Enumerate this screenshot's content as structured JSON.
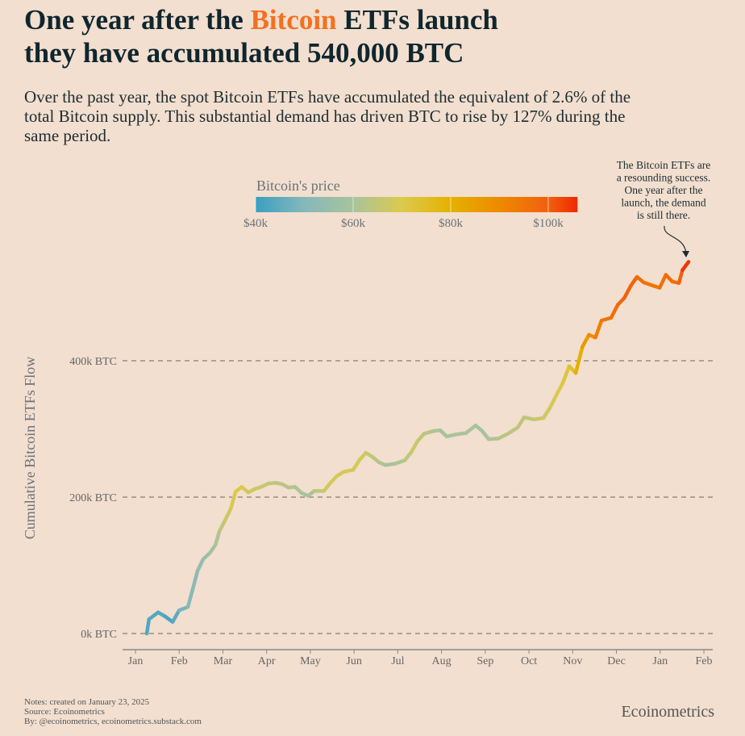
{
  "title": {
    "line1_pre": "One year after the ",
    "line1_highlight": "Bitcoin",
    "line1_post": " ETFs launch",
    "line2": "they have accumulated 540,000 BTC",
    "highlight_color": "#f37021"
  },
  "subtitle": "Over the past year, the spot Bitcoin ETFs have accumulated the equivalent of 2.6% of the total Bitcoin supply. This substantial demand has driven BTC to rise by 127% during the same period.",
  "footer": {
    "notes": "Notes: created on January 23, 2025",
    "source": "Source: Ecoinometrics",
    "by": "By: @ecoinometrics, ecoinometrics.substack.com",
    "brand": "Ecoinometrics"
  },
  "chart_data": {
    "type": "line",
    "ylabel": "Cumulative Bitcoin ETFs Flow",
    "xlabel": "",
    "x_unit": "months since Jan 2024",
    "y_unit": "thousand BTC",
    "ylim": [
      -25,
      545
    ],
    "xlim": [
      -0.3,
      13.2
    ],
    "yticks": [
      {
        "v": 0,
        "label": "0k BTC"
      },
      {
        "v": 200,
        "label": "200k BTC"
      },
      {
        "v": 400,
        "label": "400k BTC"
      }
    ],
    "xticks": [
      "Jan",
      "Feb",
      "Mar",
      "Apr",
      "May",
      "Jun",
      "Jul",
      "Aug",
      "Sep",
      "Oct",
      "Nov",
      "Dec",
      "Jan",
      "Feb"
    ],
    "grid": "horizontal dashed",
    "colorbar": {
      "title": "Bitcoin's price",
      "range_k": [
        40,
        106
      ],
      "ticks": [
        {
          "v": 40,
          "label": "$40k"
        },
        {
          "v": 60,
          "label": "$60k"
        },
        {
          "v": 80,
          "label": "$80k"
        },
        {
          "v": 100,
          "label": "$100k"
        }
      ],
      "stops": [
        [
          40,
          "#3a9fc0"
        ],
        [
          50,
          "#86b8bb"
        ],
        [
          60,
          "#a9c39c"
        ],
        [
          70,
          "#dcca4c"
        ],
        [
          80,
          "#e5b100"
        ],
        [
          90,
          "#ee8a00"
        ],
        [
          100,
          "#f06010"
        ],
        [
          106,
          "#ef2800"
        ]
      ]
    },
    "annotation": [
      "The Bitcoin ETFs are",
      "a resounding success.",
      "One year after the",
      "launch, the demand",
      "is still there."
    ],
    "points": [
      [
        0.26,
        0,
        43
      ],
      [
        0.31,
        21,
        43
      ],
      [
        0.52,
        31,
        44
      ],
      [
        0.68,
        25,
        43
      ],
      [
        0.85,
        17,
        42
      ],
      [
        1.0,
        34,
        47
      ],
      [
        1.2,
        39,
        50
      ],
      [
        1.31,
        65,
        52
      ],
      [
        1.42,
        92,
        52
      ],
      [
        1.55,
        109,
        55
      ],
      [
        1.7,
        118,
        57
      ],
      [
        1.83,
        130,
        60
      ],
      [
        1.92,
        150,
        62
      ],
      [
        2.05,
        166,
        66
      ],
      [
        2.18,
        183,
        68
      ],
      [
        2.29,
        208,
        70
      ],
      [
        2.43,
        215,
        70
      ],
      [
        2.58,
        207,
        68
      ],
      [
        2.73,
        212,
        67
      ],
      [
        2.88,
        215,
        66
      ],
      [
        3.04,
        220,
        66
      ],
      [
        3.21,
        221,
        64
      ],
      [
        3.36,
        219,
        63
      ],
      [
        3.5,
        214,
        63
      ],
      [
        3.65,
        215,
        62
      ],
      [
        3.8,
        206,
        60
      ],
      [
        3.95,
        202,
        58
      ],
      [
        4.09,
        209,
        62
      ],
      [
        4.31,
        209,
        66
      ],
      [
        4.46,
        221,
        68
      ],
      [
        4.61,
        231,
        69
      ],
      [
        4.76,
        237,
        68
      ],
      [
        4.98,
        240,
        68
      ],
      [
        5.13,
        255,
        69
      ],
      [
        5.27,
        265,
        67
      ],
      [
        5.42,
        259,
        65
      ],
      [
        5.57,
        251,
        62
      ],
      [
        5.72,
        247,
        60
      ],
      [
        5.94,
        249,
        59
      ],
      [
        6.16,
        254,
        63
      ],
      [
        6.31,
        266,
        66
      ],
      [
        6.45,
        282,
        67
      ],
      [
        6.6,
        293,
        64
      ],
      [
        6.82,
        297,
        62
      ],
      [
        6.97,
        298,
        60
      ],
      [
        7.12,
        289,
        59
      ],
      [
        7.34,
        292,
        61
      ],
      [
        7.56,
        294,
        60
      ],
      [
        7.78,
        305,
        60
      ],
      [
        7.93,
        297,
        58
      ],
      [
        8.08,
        285,
        60
      ],
      [
        8.3,
        286,
        62
      ],
      [
        8.52,
        293,
        63
      ],
      [
        8.74,
        302,
        64
      ],
      [
        8.89,
        317,
        65
      ],
      [
        9.11,
        314,
        64
      ],
      [
        9.33,
        316,
        67
      ],
      [
        9.48,
        331,
        68
      ],
      [
        9.63,
        350,
        70
      ],
      [
        9.77,
        367,
        71
      ],
      [
        9.92,
        392,
        73
      ],
      [
        10.07,
        382,
        76
      ],
      [
        10.22,
        420,
        85
      ],
      [
        10.37,
        438,
        88
      ],
      [
        10.52,
        434,
        91
      ],
      [
        10.66,
        459,
        94
      ],
      [
        10.88,
        463,
        96
      ],
      [
        11.03,
        482,
        97
      ],
      [
        11.18,
        492,
        99
      ],
      [
        11.33,
        510,
        100
      ],
      [
        11.47,
        523,
        98
      ],
      [
        11.62,
        515,
        96
      ],
      [
        11.84,
        510,
        95
      ],
      [
        11.99,
        507,
        94
      ],
      [
        12.13,
        526,
        98
      ],
      [
        12.28,
        516,
        97
      ],
      [
        12.43,
        514,
        96
      ],
      [
        12.51,
        533,
        103
      ],
      [
        12.65,
        545,
        106
      ]
    ]
  }
}
